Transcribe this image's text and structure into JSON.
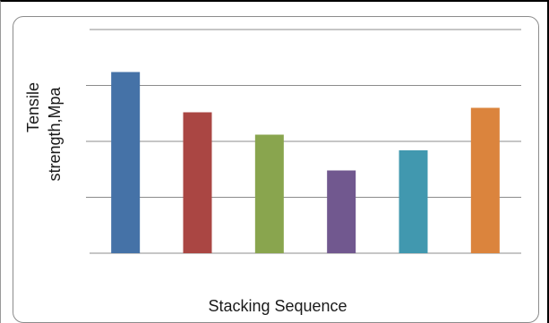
{
  "chart_data": {
    "type": "bar",
    "title": "",
    "xlabel": "Stacking Sequence",
    "ylabel": "Tensile strength,Mpa",
    "categories": [
      "",
      "",
      "",
      "",
      "",
      ""
    ],
    "values": [
      81,
      63,
      53,
      37,
      46,
      65
    ],
    "ylim": [
      0,
      100
    ],
    "grid": true,
    "legend": "none",
    "colors": [
      "#4572a7",
      "#aa4643",
      "#89a54e",
      "#71588f",
      "#4198af",
      "#db843d"
    ]
  }
}
